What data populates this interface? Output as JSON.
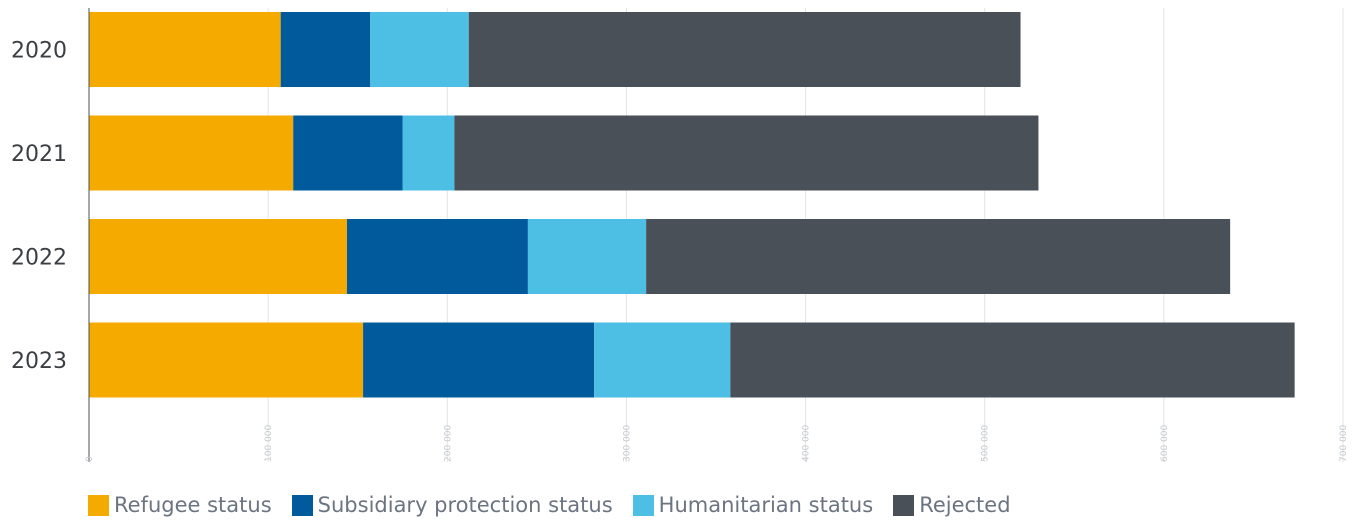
{
  "chart_data": {
    "type": "bar",
    "orientation": "horizontal",
    "stacked": true,
    "categories": [
      "2020",
      "2021",
      "2022",
      "2023"
    ],
    "series": [
      {
        "name": "Refugee status",
        "color": "#F5AA00",
        "values": [
          107000,
          114000,
          144000,
          153000
        ]
      },
      {
        "name": "Subsidiary protection status",
        "color": "#005A9B",
        "values": [
          50000,
          61000,
          101000,
          129000
        ]
      },
      {
        "name": "Humanitarian status",
        "color": "#4DBFE5",
        "values": [
          55000,
          29000,
          66000,
          76000
        ]
      },
      {
        "name": "Rejected",
        "color": "#4A5058",
        "values": [
          308000,
          326000,
          326000,
          315000
        ]
      }
    ],
    "xlim": [
      0,
      700000
    ],
    "xticks": [
      0,
      100000,
      200000,
      300000,
      400000,
      500000,
      600000,
      700000
    ],
    "xtick_labels": [
      "0",
      "100 000",
      "200 000",
      "300 000",
      "400 000",
      "500 000",
      "600 000",
      "700 000"
    ],
    "grid": "vertical",
    "legend_position": "bottom-left"
  }
}
